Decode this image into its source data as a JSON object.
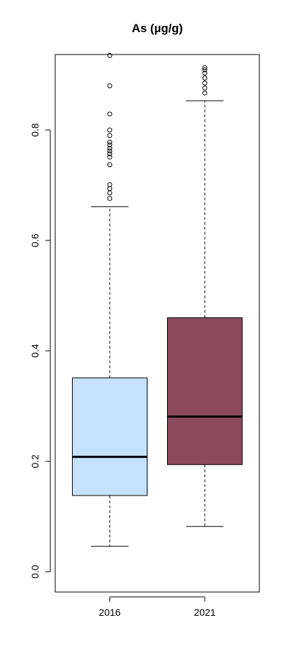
{
  "chart_data": {
    "type": "box",
    "title": "As (µg/g)",
    "categories": [
      "2016",
      "2021"
    ],
    "colors": [
      "#c6e2ff",
      "#8b4a5e"
    ],
    "boxes": [
      {
        "whislo": 0.046,
        "q1": 0.138,
        "med": 0.208,
        "q3": 0.351,
        "whishi": 0.661,
        "outliers": [
          0.935,
          0.88,
          0.829,
          0.8,
          0.79,
          0.778,
          0.773,
          0.767,
          0.762,
          0.757,
          0.751,
          0.737,
          0.701,
          0.694,
          0.686,
          0.676
        ]
      },
      {
        "whislo": 0.082,
        "q1": 0.194,
        "med": 0.281,
        "q3": 0.46,
        "whishi": 0.853,
        "outliers": [
          0.913,
          0.909,
          0.903,
          0.894,
          0.885,
          0.876,
          0.867
        ]
      }
    ],
    "ylim": [
      -0.0367,
      0.9367
    ],
    "yticks": [
      {
        "value": 0,
        "label": "0.0"
      },
      0.2,
      0.4,
      0.6,
      0.8
    ]
  }
}
